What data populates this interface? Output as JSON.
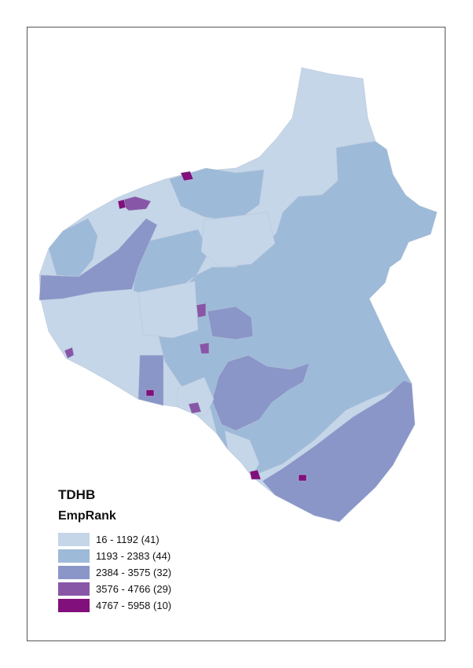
{
  "map": {
    "legend": {
      "title": "TDHB",
      "field": "EmpRank",
      "classes": [
        {
          "label": "16 - 1192 (41)",
          "color": "#c4d6e8"
        },
        {
          "label": "1193 - 2383 (44)",
          "color": "#9ebad9"
        },
        {
          "label": "2384 - 3575 (32)",
          "color": "#8a96c8"
        },
        {
          "label": "3576 - 4766 (29)",
          "color": "#8856a7"
        },
        {
          "label": "4767 - 5958 (10)",
          "color": "#810f7c"
        }
      ]
    }
  }
}
